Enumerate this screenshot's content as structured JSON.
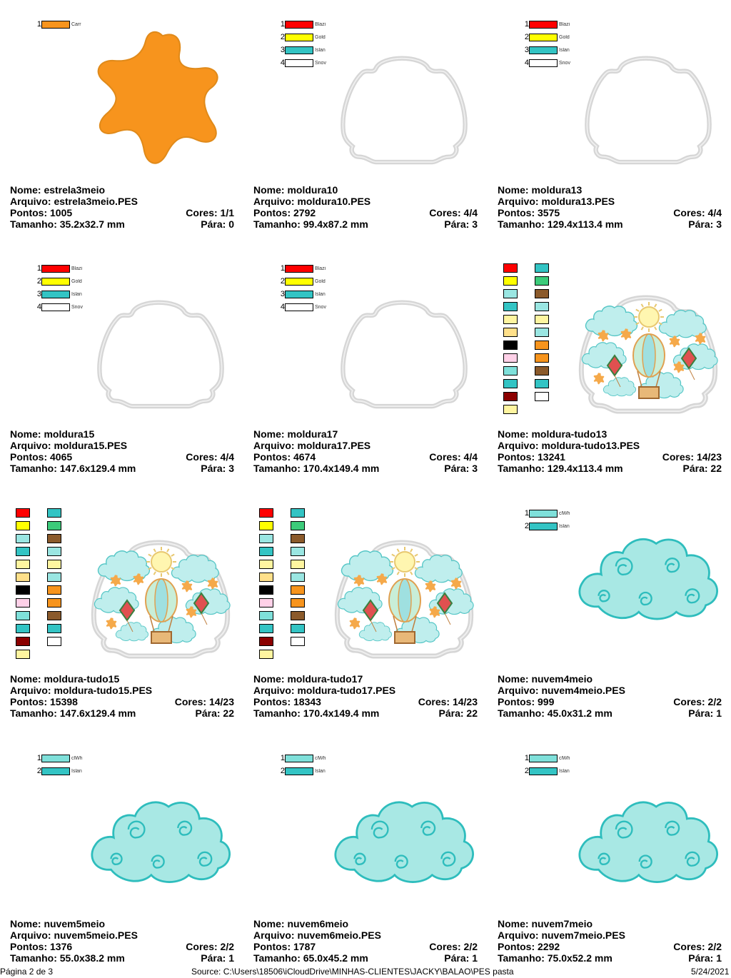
{
  "cards": [
    {
      "name": "Nome: estrela3meio",
      "file": "Arquivo: estrela3meio.PES",
      "points": "Pontos: 1005",
      "colors": "Cores: 1/1",
      "size": "Tamanho: 35.2x32.7 mm",
      "stops": "Pára: 0",
      "threads": [
        {
          "n": "1",
          "color": "#F7941D",
          "label": "Carr"
        }
      ]
    },
    {
      "name": "Nome: moldura10",
      "file": "Arquivo: moldura10.PES",
      "points": "Pontos: 2792",
      "colors": "Cores: 4/4",
      "size": "Tamanho: 99.4x87.2 mm",
      "stops": "Pára: 3",
      "threads": [
        {
          "n": "1",
          "color": "#FF0000",
          "label": "Blazi"
        },
        {
          "n": "2",
          "color": "#FFFF00",
          "label": "Gold"
        },
        {
          "n": "3",
          "color": "#33C4C4",
          "label": "Islan"
        },
        {
          "n": "4",
          "color": "#FFFFFF",
          "label": "Snov"
        }
      ]
    },
    {
      "name": "Nome: moldura13",
      "file": "Arquivo: moldura13.PES",
      "points": "Pontos: 3575",
      "colors": "Cores: 4/4",
      "size": "Tamanho: 129.4x113.4 mm",
      "stops": "Pára: 3",
      "threads": [
        {
          "n": "1",
          "color": "#FF0000",
          "label": "Blazi"
        },
        {
          "n": "2",
          "color": "#FFFF00",
          "label": "Gold"
        },
        {
          "n": "3",
          "color": "#33C4C4",
          "label": "Islan"
        },
        {
          "n": "4",
          "color": "#FFFFFF",
          "label": "Snov"
        }
      ]
    },
    {
      "name": "Nome: moldura15",
      "file": "Arquivo: moldura15.PES",
      "points": "Pontos: 4065",
      "colors": "Cores: 4/4",
      "size": "Tamanho: 147.6x129.4 mm",
      "stops": "Pára: 3",
      "threads": [
        {
          "n": "1",
          "color": "#FF0000",
          "label": "Blazi"
        },
        {
          "n": "2",
          "color": "#FFFF00",
          "label": "Gold"
        },
        {
          "n": "3",
          "color": "#33C4C4",
          "label": "Islan"
        },
        {
          "n": "4",
          "color": "#FFFFFF",
          "label": "Snov"
        }
      ]
    },
    {
      "name": "Nome: moldura17",
      "file": "Arquivo: moldura17.PES",
      "points": "Pontos: 4674",
      "colors": "Cores: 4/4",
      "size": "Tamanho: 170.4x149.4 mm",
      "stops": "Pára: 3",
      "threads": [
        {
          "n": "1",
          "color": "#FF0000",
          "label": "Blazi"
        },
        {
          "n": "2",
          "color": "#FFFF00",
          "label": "Gold"
        },
        {
          "n": "3",
          "color": "#33C4C4",
          "label": "Islan"
        },
        {
          "n": "4",
          "color": "#FFFFFF",
          "label": "Snov"
        }
      ]
    },
    {
      "name": "Nome: moldura-tudo13",
      "file": "Arquivo: moldura-tudo13.PES",
      "points": "Pontos: 13241",
      "colors": "Cores: 14/23",
      "size": "Tamanho: 129.4x113.4 mm",
      "stops": "Pára: 22"
    },
    {
      "name": "Nome: moldura-tudo15",
      "file": "Arquivo: moldura-tudo15.PES",
      "points": "Pontos: 15398",
      "colors": "Cores: 14/23",
      "size": "Tamanho: 147.6x129.4 mm",
      "stops": "Pára: 22"
    },
    {
      "name": "Nome: moldura-tudo17",
      "file": "Arquivo: moldura-tudo17.PES",
      "points": "Pontos: 18343",
      "colors": "Cores: 14/23",
      "size": "Tamanho: 170.4x149.4 mm",
      "stops": "Pára: 22"
    },
    {
      "name": "Nome: nuvem4meio",
      "file": "Arquivo: nuvem4meio.PES",
      "points": "Pontos: 999",
      "colors": "Cores: 2/2",
      "size": "Tamanho: 45.0x31.2 mm",
      "stops": "Pára: 1",
      "threads": [
        {
          "n": "1",
          "color": "#7FE0DA",
          "label": "clWh"
        },
        {
          "n": "2",
          "color": "#33C4C4",
          "label": "Islan"
        }
      ]
    },
    {
      "name": "Nome: nuvem5meio",
      "file": "Arquivo: nuvem5meio.PES",
      "points": "Pontos: 1376",
      "colors": "Cores: 2/2",
      "size": "Tamanho: 55.0x38.2 mm",
      "stops": "Pára: 1",
      "threads": [
        {
          "n": "1",
          "color": "#7FE0DA",
          "label": "clWh"
        },
        {
          "n": "2",
          "color": "#33C4C4",
          "label": "Islan"
        }
      ]
    },
    {
      "name": "Nome: nuvem6meio",
      "file": "Arquivo: nuvem6meio.PES",
      "points": "Pontos: 1787",
      "colors": "Cores: 2/2",
      "size": "Tamanho: 65.0x45.2 mm",
      "stops": "Pára: 1",
      "threads": [
        {
          "n": "1",
          "color": "#7FE0DA",
          "label": "clWh"
        },
        {
          "n": "2",
          "color": "#33C4C4",
          "label": "Islan"
        }
      ]
    },
    {
      "name": "Nome: nuvem7meio",
      "file": "Arquivo: nuvem7meio.PES",
      "points": "Pontos: 2292",
      "colors": "Cores: 2/2",
      "size": "Tamanho: 75.0x52.2 mm",
      "stops": "Pára: 1",
      "threads": [
        {
          "n": "1",
          "color": "#7FE0DA",
          "label": "clWh"
        },
        {
          "n": "2",
          "color": "#33C4C4",
          "label": "Islan"
        }
      ]
    }
  ],
  "palette_grid": {
    "left": [
      "#FF0000",
      "#FFFF00",
      "#9AE6E2",
      "#33C4C4",
      "#FFF5A0",
      "#FFE08A",
      "#000000",
      "#FFD1E8",
      "#7FE0DA",
      "#33C4C4",
      "#8B0000",
      "#FFF5A0"
    ],
    "right": [
      "#33C4C4",
      "#3CCB7A",
      "#8B5A2B",
      "#9AE6E2",
      "#FFF5A0",
      "#9AE6E2",
      "#F7941D",
      "#F7941D",
      "#8B5A2B",
      "#33C4C4",
      "#FFFFFF"
    ]
  },
  "footer": {
    "page": "Página 2 de 3",
    "source": "Source: C:\\Users\\18506\\iCloudDrive\\MINHAS-CLIENTES\\JACKY\\BALAO\\PES pasta",
    "date": "5/24/2021"
  },
  "colors": {
    "orange": "#F7941D",
    "cloud": "#A8E8E4",
    "cloud_stroke": "#2EBDBD",
    "frame": "#D9D9D9"
  }
}
